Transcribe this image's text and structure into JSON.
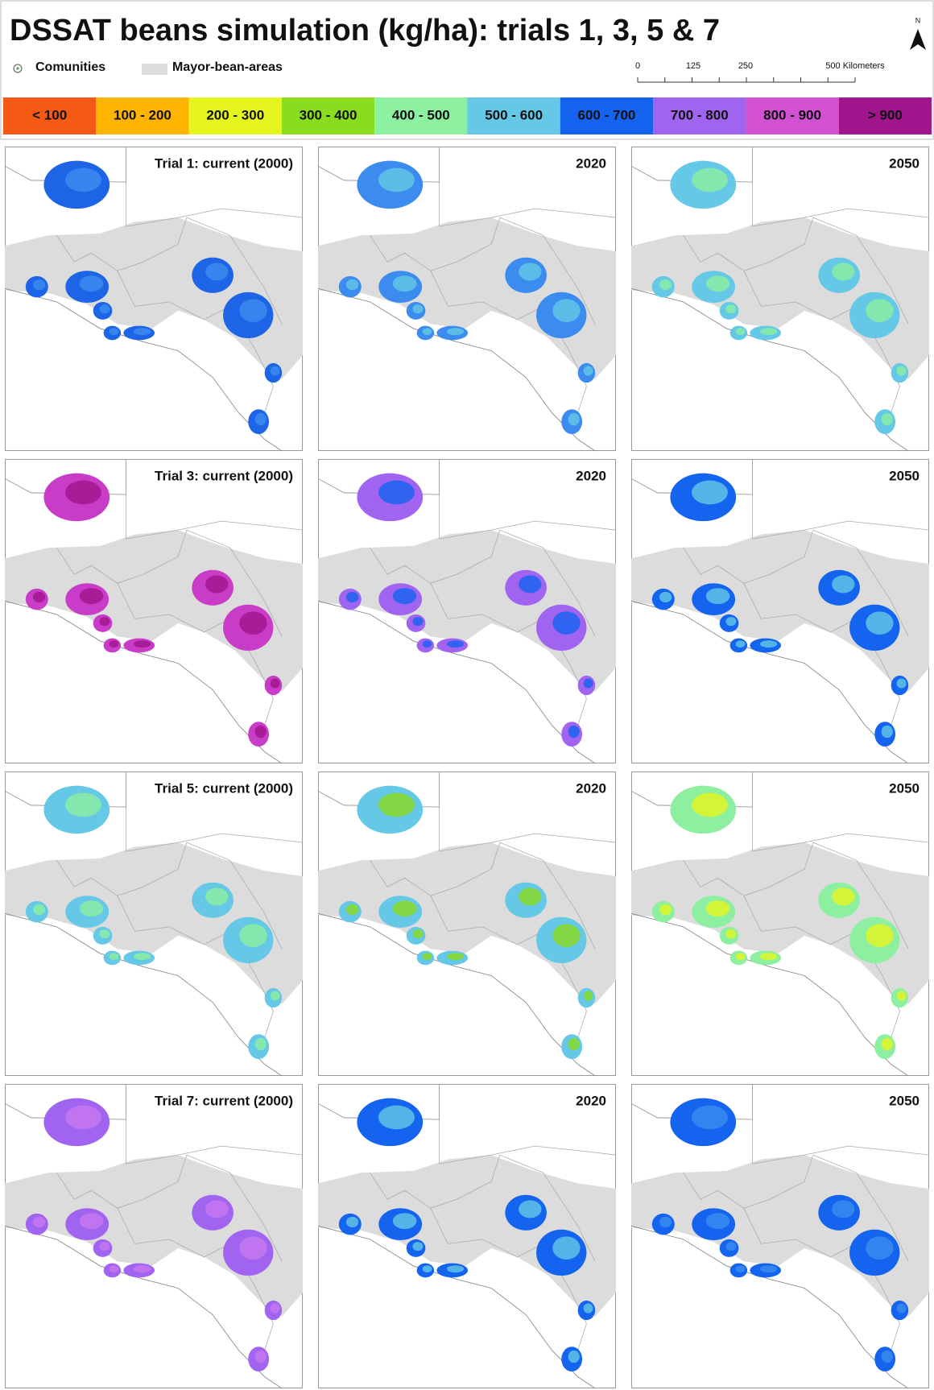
{
  "header": {
    "title": "DSSAT beans simulation (kg/ha): trials 1, 3, 5 & 7"
  },
  "legend": {
    "communities": "Comunities",
    "bean_areas": "Mayor-bean-areas"
  },
  "scale_bar": {
    "labels": [
      "0",
      "125",
      "250",
      "500 Kilometers"
    ]
  },
  "north_arrow": "N",
  "color_legend": [
    {
      "label": "< 100",
      "color": "#f55a14"
    },
    {
      "label": "100 - 200",
      "color": "#ffb400"
    },
    {
      "label": "200 - 300",
      "color": "#e6f51e"
    },
    {
      "label": "300 - 400",
      "color": "#8cdc1e"
    },
    {
      "label": "400 - 500",
      "color": "#8cf0a0"
    },
    {
      "label": "500 - 600",
      "color": "#64c8e6"
    },
    {
      "label": "600 - 700",
      "color": "#1464f0"
    },
    {
      "label": "700 - 800",
      "color": "#a064f0"
    },
    {
      "label": "800 - 900",
      "color": "#d250d2"
    },
    {
      "label": "> 900",
      "color": "#a0148c"
    }
  ],
  "panels": [
    [
      "Trial 1: current (2000)",
      "2020",
      "2050"
    ],
    [
      "Trial 3: current (2000)",
      "2020",
      "2050"
    ],
    [
      "Trial 5: current (2000)",
      "2020",
      "2050"
    ],
    [
      "Trial 7: current (2000)",
      "2020",
      "2050"
    ]
  ]
}
